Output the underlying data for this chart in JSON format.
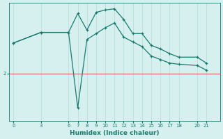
{
  "xlabel": "Humidex (Indice chaleur)",
  "bg_color": "#d5f0ee",
  "line_color": "#1a7a6e",
  "ref_line_color": "#cc6666",
  "ref_y": 2.0,
  "x_ticks": [
    0,
    3,
    6,
    7,
    8,
    9,
    10,
    11,
    12,
    13,
    14,
    15,
    16,
    17,
    18,
    20,
    21
  ],
  "xlim": [
    -0.5,
    22.5
  ],
  "ylim": [
    0.0,
    5.0
  ],
  "ytick_vals": [
    2
  ],
  "ytick_labels": [
    "2"
  ],
  "grid_color": "#b8ddd9",
  "marker": "+",
  "line1_x": [
    0,
    3,
    6,
    7,
    8,
    9,
    10,
    11,
    12,
    13,
    14,
    15,
    16,
    17,
    18,
    20,
    21
  ],
  "line1_y": [
    3.3,
    3.75,
    3.75,
    4.55,
    3.85,
    4.6,
    4.7,
    4.75,
    4.3,
    3.7,
    3.7,
    3.2,
    3.05,
    2.85,
    2.7,
    2.7,
    2.45
  ],
  "line2_x": [
    0,
    3,
    6,
    7,
    8,
    9,
    10,
    11,
    12,
    13,
    14,
    15,
    16,
    17,
    18,
    20,
    21
  ],
  "line2_y": [
    3.3,
    3.75,
    3.75,
    0.55,
    3.45,
    3.7,
    3.95,
    4.15,
    3.55,
    3.35,
    3.15,
    2.75,
    2.6,
    2.45,
    2.4,
    2.35,
    2.15
  ]
}
